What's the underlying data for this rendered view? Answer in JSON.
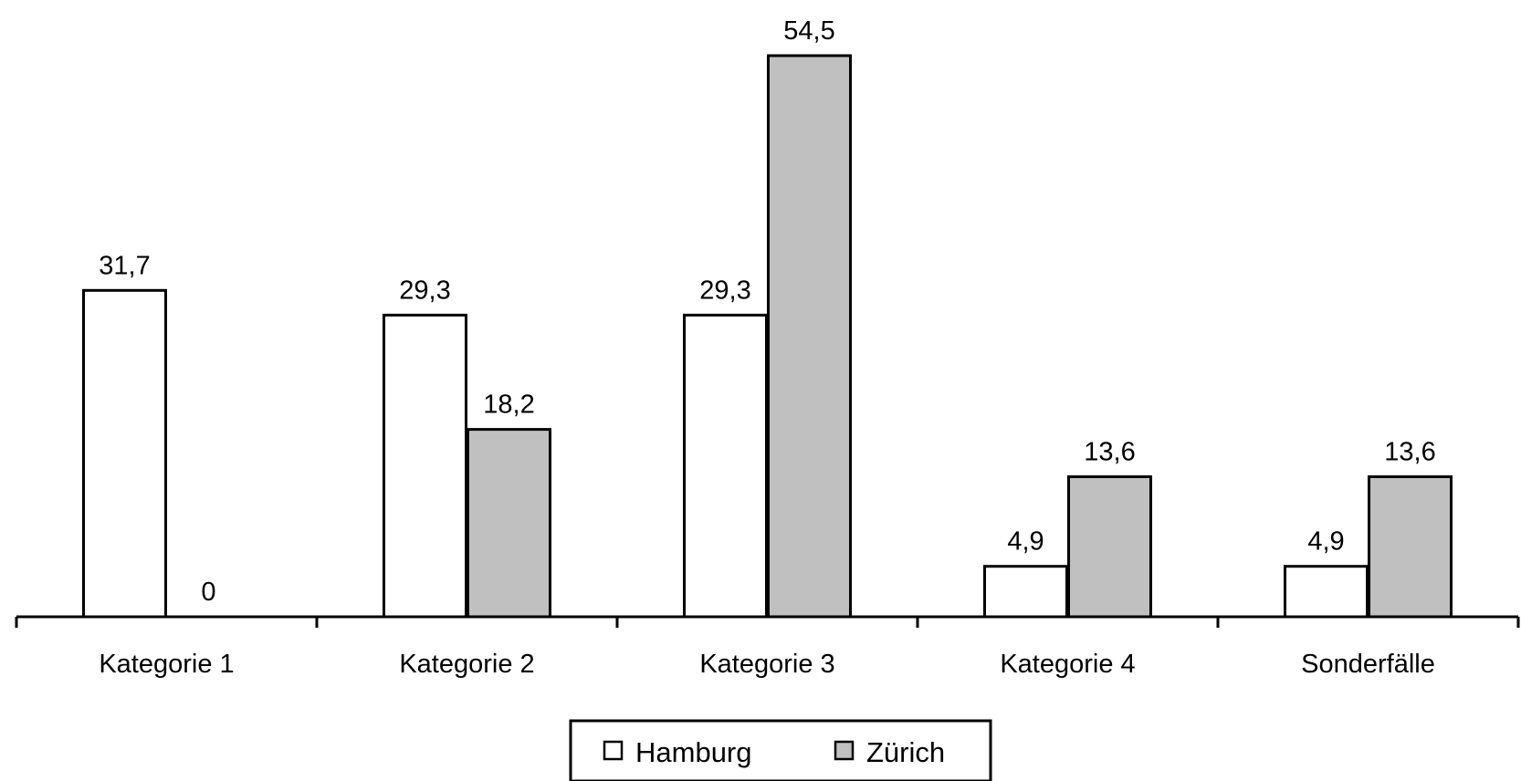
{
  "chart_data": {
    "type": "bar",
    "categories": [
      "Kategorie 1",
      "Kategorie 2",
      "Kategorie 3",
      "Kategorie 4",
      "Sonderfälle"
    ],
    "series": [
      {
        "name": "Hamburg",
        "values": [
          31.7,
          29.3,
          29.3,
          4.9,
          4.9
        ],
        "value_labels": [
          "31,7",
          "29,3",
          "29,3",
          "4,9",
          "4,9"
        ],
        "color": "#ffffff"
      },
      {
        "name": "Zürich",
        "values": [
          0,
          18.2,
          54.5,
          13.6,
          13.6
        ],
        "value_labels": [
          "0",
          "18,2",
          "54,5",
          "13,6",
          "13,6"
        ],
        "color": "#c0c0c0"
      }
    ],
    "ylim": [
      0,
      54.5
    ],
    "grid": false,
    "legend_position": "bottom-center",
    "bar_outline_color": "#000000"
  }
}
